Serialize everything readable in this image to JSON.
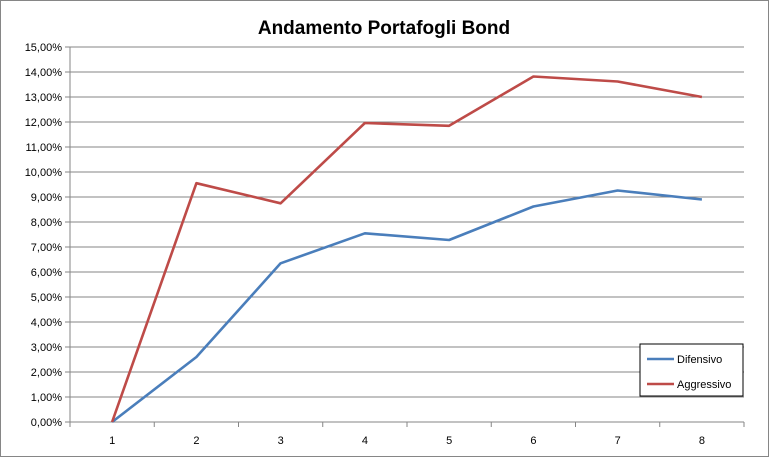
{
  "chart_data": {
    "type": "line",
    "title": "Andamento Portafogli Bond",
    "x": [
      "1",
      "2",
      "3",
      "4",
      "5",
      "6",
      "7",
      "8"
    ],
    "yticks": [
      "0,00%",
      "1,00%",
      "2,00%",
      "3,00%",
      "4,00%",
      "5,00%",
      "6,00%",
      "7,00%",
      "8,00%",
      "9,00%",
      "10,00%",
      "11,00%",
      "12,00%",
      "13,00%",
      "14,00%",
      "15,00%"
    ],
    "ylim": [
      0,
      15
    ],
    "yunit": "%",
    "grid": true,
    "legend_position": "right",
    "series": [
      {
        "name": "Difensivo",
        "color": "#4a7ebb",
        "values": [
          0.0,
          2.6,
          6.35,
          7.55,
          7.28,
          8.62,
          9.26,
          8.9
        ]
      },
      {
        "name": "Aggressivo",
        "color": "#be4b48",
        "values": [
          0.0,
          9.55,
          8.75,
          11.96,
          11.85,
          13.82,
          13.62,
          13.0
        ]
      }
    ]
  }
}
